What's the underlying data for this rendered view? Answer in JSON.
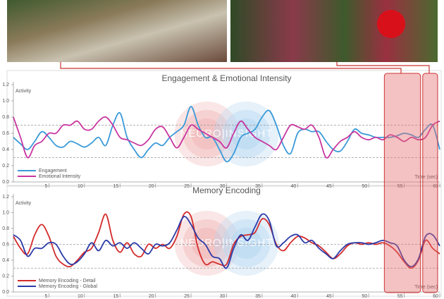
{
  "highlight_ranges": [
    [
      52.2,
      57.3
    ],
    [
      57.6,
      59.7
    ]
  ],
  "chart_data": [
    {
      "type": "line",
      "title": "Engagement & Emotional Intensity",
      "y_label": "Activity",
      "x_label": "Time (sec)",
      "watermark": "NEURO|INSIGHT",
      "x": [
        0,
        1,
        2,
        3,
        4,
        5,
        6,
        7,
        8,
        9,
        10,
        11,
        12,
        13,
        14,
        15,
        16,
        17,
        18,
        19,
        20,
        21,
        22,
        23,
        24,
        25,
        26,
        27,
        28,
        29,
        30,
        31,
        32,
        33,
        34,
        35,
        36,
        37,
        38,
        39,
        40,
        41,
        42,
        43,
        44,
        45,
        46,
        47,
        48,
        49,
        50,
        51,
        52,
        53,
        54,
        55,
        56,
        57,
        58,
        59,
        60
      ],
      "xlim": [
        0,
        60
      ],
      "xticks": [
        5,
        10,
        15,
        20,
        25,
        30,
        35,
        40,
        45,
        50,
        55,
        60
      ],
      "ylim": [
        0,
        1.2
      ],
      "yticks": [
        {
          "value": 0,
          "label": "0.0"
        },
        0.2,
        0.4,
        0.6,
        0.8,
        {
          "value": 1,
          "label": "1.0"
        },
        1.2
      ],
      "reference_lines": [
        0.7,
        0.3
      ],
      "legend": "lower left",
      "series": [
        {
          "name": "Engagement",
          "color": "#3a9ad9",
          "values": [
            0.55,
            0.47,
            0.4,
            0.5,
            0.62,
            0.55,
            0.45,
            0.43,
            0.5,
            0.47,
            0.43,
            0.48,
            0.55,
            0.45,
            0.7,
            0.85,
            0.55,
            0.4,
            0.3,
            0.4,
            0.48,
            0.45,
            0.55,
            0.62,
            0.7,
            0.93,
            0.7,
            0.55,
            0.55,
            0.4,
            0.25,
            0.35,
            0.55,
            0.6,
            0.65,
            0.8,
            0.88,
            0.7,
            0.45,
            0.35,
            0.6,
            0.65,
            0.62,
            0.62,
            0.5,
            0.4,
            0.38,
            0.5,
            0.65,
            0.6,
            0.58,
            0.55,
            0.55,
            0.55,
            0.57,
            0.6,
            0.58,
            0.55,
            0.65,
            0.7,
            0.4
          ]
        },
        {
          "name": "Emotional Intensity",
          "color": "#c8359f",
          "values": [
            0.8,
            0.55,
            0.3,
            0.45,
            0.5,
            0.6,
            0.6,
            0.7,
            0.7,
            0.75,
            0.65,
            0.65,
            0.75,
            0.8,
            0.7,
            0.55,
            0.52,
            0.48,
            0.45,
            0.52,
            0.65,
            0.68,
            0.55,
            0.42,
            0.55,
            0.7,
            0.65,
            0.6,
            0.55,
            0.5,
            0.42,
            0.6,
            0.75,
            0.65,
            0.55,
            0.5,
            0.45,
            0.4,
            0.55,
            0.7,
            0.68,
            0.65,
            0.7,
            0.55,
            0.3,
            0.4,
            0.5,
            0.55,
            0.62,
            0.55,
            0.52,
            0.55,
            0.52,
            0.58,
            0.55,
            0.5,
            0.55,
            0.52,
            0.55,
            0.7,
            0.75
          ]
        }
      ]
    },
    {
      "type": "line",
      "title": "Memory Encoding",
      "y_label": "Activity",
      "x_label": "Time (sec)",
      "watermark": "NEURO|INSIGHT",
      "x": [
        0,
        1,
        2,
        3,
        4,
        5,
        6,
        7,
        8,
        9,
        10,
        11,
        12,
        13,
        14,
        15,
        16,
        17,
        18,
        19,
        20,
        21,
        22,
        23,
        24,
        25,
        26,
        27,
        28,
        29,
        30,
        31,
        32,
        33,
        34,
        35,
        36,
        37,
        38,
        39,
        40,
        41,
        42,
        43,
        44,
        45,
        46,
        47,
        48,
        49,
        50,
        51,
        52,
        53,
        54,
        55,
        56,
        57,
        58,
        59,
        60
      ],
      "xlim": [
        0,
        60
      ],
      "xticks": [
        5,
        10,
        15,
        20,
        25,
        30,
        35,
        40,
        45,
        50,
        55,
        60
      ],
      "ylim": [
        0,
        1.2
      ],
      "yticks": [
        {
          "value": 0,
          "label": "0.0"
        },
        0.2,
        0.4,
        0.6,
        0.8,
        {
          "value": 1,
          "label": "1.0"
        },
        1.2
      ],
      "reference_lines": [
        0.6,
        0.3
      ],
      "legend": "lower left",
      "series": [
        {
          "name": "Memory Encoding - Detail",
          "color": "#d42a2a",
          "values": [
            0.7,
            0.55,
            0.48,
            0.72,
            0.85,
            0.7,
            0.45,
            0.35,
            0.32,
            0.4,
            0.5,
            0.55,
            0.75,
            0.98,
            0.65,
            0.5,
            0.62,
            0.48,
            0.45,
            0.6,
            0.55,
            0.6,
            0.55,
            0.7,
            0.98,
            0.95,
            0.55,
            0.35,
            0.38,
            0.35,
            0.35,
            0.6,
            0.7,
            0.72,
            0.75,
            0.92,
            0.85,
            0.6,
            0.52,
            0.62,
            0.7,
            0.68,
            0.62,
            0.58,
            0.5,
            0.42,
            0.48,
            0.58,
            0.62,
            0.6,
            0.62,
            0.6,
            0.62,
            0.58,
            0.5,
            0.38,
            0.3,
            0.4,
            0.65,
            0.55,
            0.48
          ]
        },
        {
          "name": "Memory Encoding - Global",
          "color": "#2a3aa8",
          "values": [
            0.72,
            0.65,
            0.45,
            0.55,
            0.55,
            0.62,
            0.6,
            0.45,
            0.35,
            0.38,
            0.48,
            0.62,
            0.52,
            0.65,
            0.58,
            0.62,
            0.55,
            0.62,
            0.55,
            0.48,
            0.6,
            0.58,
            0.62,
            0.78,
            0.95,
            0.85,
            0.68,
            0.6,
            0.45,
            0.42,
            0.3,
            0.55,
            0.72,
            0.65,
            0.82,
            0.98,
            0.9,
            0.58,
            0.62,
            0.7,
            0.72,
            0.62,
            0.65,
            0.55,
            0.48,
            0.42,
            0.52,
            0.6,
            0.62,
            0.62,
            0.6,
            0.62,
            0.65,
            0.62,
            0.58,
            0.4,
            0.32,
            0.42,
            0.7,
            0.72,
            0.58
          ]
        }
      ]
    }
  ]
}
